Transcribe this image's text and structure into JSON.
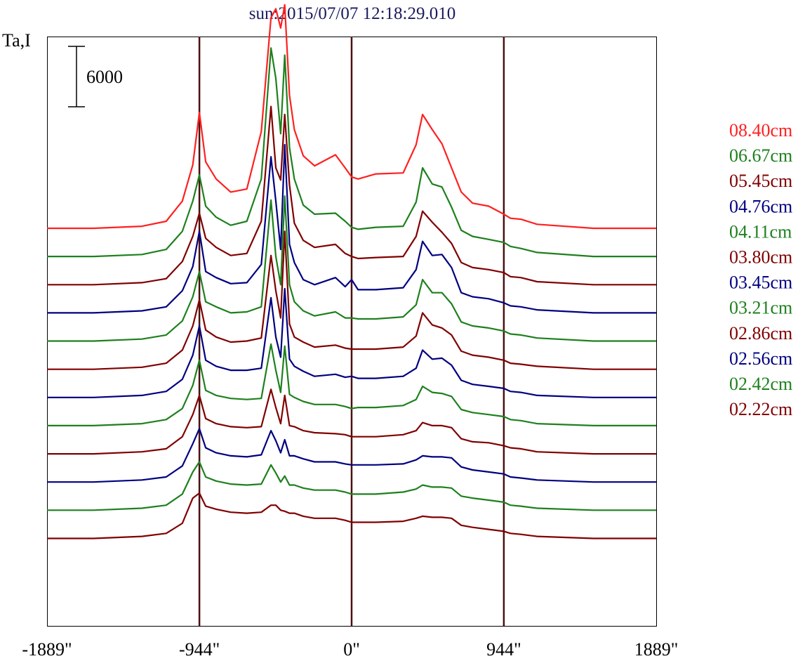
{
  "chart_data": {
    "type": "line",
    "title": "sun:2015/07/07 12:18:29.010",
    "ylabel": "Ta,I",
    "scale_bar_label": "6000",
    "scale_bar_value": 6000,
    "x_tick_labels": [
      "-1889\"",
      "-944\"",
      "0\"",
      "944\"",
      "1889\""
    ],
    "x_ticks": [
      -1889,
      -944,
      0,
      944,
      1889
    ],
    "xlim": [
      -1889,
      1889
    ],
    "vertical_lines": [
      -944,
      0,
      944
    ],
    "grid": false,
    "legend_position": "right",
    "colors": {
      "red": "#ff2020",
      "green": "#1e801e",
      "maroon": "#800000",
      "navy": "#000080",
      "title": "#1a1a60",
      "vline": "#4a1010"
    },
    "legend": [
      {
        "label": "08.40cm",
        "color": "#ff2020"
      },
      {
        "label": "06.67cm",
        "color": "#1e801e"
      },
      {
        "label": "05.45cm",
        "color": "#800000"
      },
      {
        "label": "04.76cm",
        "color": "#000080"
      },
      {
        "label": "04.11cm",
        "color": "#1e801e"
      },
      {
        "label": "03.80cm",
        "color": "#800000"
      },
      {
        "label": "03.45cm",
        "color": "#000080"
      },
      {
        "label": "03.21cm",
        "color": "#1e801e"
      },
      {
        "label": "02.86cm",
        "color": "#800000"
      },
      {
        "label": "02.56cm",
        "color": "#000080"
      },
      {
        "label": "02.42cm",
        "color": "#1e801e"
      },
      {
        "label": "02.22cm",
        "color": "#800000"
      }
    ],
    "x": [
      -1889,
      -1600,
      -1300,
      -1150,
      -1050,
      -985,
      -944,
      -905,
      -840,
      -750,
      -650,
      -560,
      -500,
      -470,
      -440,
      -415,
      -385,
      -355,
      -300,
      -230,
      -100,
      -40,
      0,
      40,
      150,
      320,
      400,
      440,
      500,
      560,
      620,
      680,
      750,
      850,
      944,
      985,
      1050,
      1150,
      1500,
      1889
    ],
    "series": [
      {
        "color": "#ff2020",
        "baseline": 0,
        "values": [
          0,
          0,
          200,
          700,
          2700,
          6300,
          11500,
          6600,
          4900,
          3600,
          3900,
          9600,
          20900,
          21800,
          19900,
          22200,
          13200,
          9800,
          7200,
          6200,
          7300,
          6000,
          5100,
          4900,
          5400,
          5500,
          8300,
          11300,
          9800,
          8400,
          6000,
          3600,
          2500,
          2200,
          1400,
          1000,
          900,
          400,
          0,
          0
        ]
      },
      {
        "color": "#1e801e",
        "baseline": -2800,
        "values": [
          0,
          0,
          200,
          700,
          2500,
          5500,
          8100,
          5000,
          3900,
          3100,
          3500,
          7700,
          20700,
          17700,
          12200,
          20000,
          10800,
          7700,
          5100,
          4200,
          4300,
          3500,
          2900,
          2700,
          2900,
          3000,
          5400,
          8800,
          7200,
          6900,
          4900,
          2600,
          2000,
          1700,
          1400,
          1000,
          800,
          400,
          0,
          0
        ]
      },
      {
        "color": "#800000",
        "baseline": -5600,
        "values": [
          0,
          0,
          200,
          600,
          2300,
          4800,
          7100,
          4600,
          3700,
          2900,
          3100,
          6300,
          17700,
          11600,
          10400,
          16900,
          9900,
          6100,
          4400,
          3700,
          4000,
          3100,
          2800,
          2600,
          2700,
          2800,
          4800,
          7300,
          6200,
          5200,
          4100,
          2200,
          1700,
          1500,
          1200,
          800,
          700,
          300,
          0,
          0
        ]
      },
      {
        "color": "#000080",
        "baseline": -8400,
        "values": [
          0,
          0,
          200,
          600,
          2200,
          4600,
          8100,
          4100,
          3500,
          2900,
          3000,
          4800,
          15500,
          11100,
          6300,
          16700,
          6800,
          5000,
          3300,
          2800,
          3500,
          2600,
          3300,
          2300,
          2300,
          2500,
          4300,
          7100,
          5700,
          5800,
          4500,
          2000,
          1600,
          1400,
          1000,
          700,
          600,
          300,
          0,
          0
        ]
      },
      {
        "color": "#1e801e",
        "baseline": -11200,
        "values": [
          0,
          0,
          200,
          600,
          2000,
          4400,
          6900,
          3900,
          3400,
          2800,
          2900,
          3400,
          14000,
          8400,
          5600,
          14400,
          5600,
          3900,
          3000,
          2500,
          2900,
          2300,
          2300,
          2200,
          2200,
          2400,
          3600,
          6100,
          4800,
          4800,
          3700,
          1900,
          1500,
          1300,
          1000,
          700,
          600,
          300,
          0,
          0
        ]
      },
      {
        "color": "#800000",
        "baseline": -14000,
        "values": [
          0,
          0,
          200,
          600,
          1900,
          4300,
          6900,
          3900,
          3200,
          2700,
          2800,
          3100,
          11300,
          7800,
          5100,
          13700,
          4500,
          3200,
          2700,
          2200,
          2400,
          2100,
          2000,
          2000,
          2000,
          2200,
          3300,
          5600,
          4400,
          4100,
          3400,
          1800,
          1400,
          1200,
          900,
          600,
          500,
          300,
          0,
          0
        ]
      },
      {
        "color": "#000080",
        "baseline": -16800,
        "values": [
          0,
          0,
          200,
          600,
          1800,
          4200,
          7100,
          3700,
          3100,
          2700,
          2700,
          2900,
          9900,
          6000,
          4000,
          10800,
          3800,
          3100,
          2600,
          2100,
          2300,
          2000,
          2100,
          1900,
          1900,
          2100,
          2900,
          4700,
          3800,
          3900,
          3200,
          1700,
          1300,
          1100,
          900,
          600,
          500,
          200,
          0,
          0
        ]
      },
      {
        "color": "#1e801e",
        "baseline": -19600,
        "values": [
          0,
          0,
          200,
          600,
          1700,
          4000,
          6500,
          3500,
          3000,
          2700,
          2600,
          2700,
          8100,
          5500,
          3300,
          7900,
          3100,
          2800,
          2400,
          2100,
          2100,
          1900,
          1700,
          1800,
          1800,
          2000,
          2600,
          3900,
          3300,
          3200,
          2900,
          1600,
          1300,
          1100,
          900,
          600,
          500,
          200,
          0,
          0
        ]
      },
      {
        "color": "#800000",
        "baseline": -22400,
        "values": [
          0,
          0,
          200,
          500,
          1700,
          3900,
          5800,
          3500,
          3000,
          2700,
          2600,
          2700,
          6400,
          4600,
          3000,
          5800,
          2800,
          2700,
          2300,
          2100,
          2000,
          1900,
          1700,
          1700,
          1700,
          1900,
          2300,
          3100,
          2800,
          2800,
          2600,
          1500,
          1200,
          1100,
          800,
          600,
          500,
          200,
          0,
          0
        ]
      },
      {
        "color": "#000080",
        "baseline": -25200,
        "values": [
          0,
          0,
          200,
          500,
          1600,
          3800,
          5300,
          3400,
          2900,
          2600,
          2500,
          2700,
          5100,
          4100,
          2900,
          4200,
          2600,
          2600,
          2300,
          2000,
          2000,
          1800,
          1700,
          1700,
          1700,
          1800,
          2200,
          2600,
          2500,
          2500,
          2400,
          1500,
          1200,
          1000,
          800,
          500,
          400,
          200,
          0,
          0
        ]
      },
      {
        "color": "#1e801e",
        "baseline": -28000,
        "values": [
          0,
          0,
          200,
          500,
          1600,
          3800,
          4800,
          3300,
          2900,
          2600,
          2500,
          2600,
          4500,
          3700,
          2800,
          3400,
          2500,
          2500,
          2200,
          2000,
          2000,
          1800,
          1600,
          1600,
          1600,
          1800,
          2100,
          2500,
          2300,
          2300,
          2200,
          1400,
          1200,
          1000,
          800,
          500,
          400,
          200,
          0,
          0
        ]
      },
      {
        "color": "#800000",
        "baseline": -30800,
        "values": [
          0,
          0,
          200,
          500,
          1500,
          4000,
          4500,
          3200,
          2900,
          2600,
          2500,
          2600,
          3300,
          3300,
          2800,
          2700,
          2500,
          2500,
          2200,
          2000,
          2000,
          1800,
          1600,
          1600,
          1600,
          1700,
          2000,
          2200,
          2100,
          2100,
          2000,
          1300,
          1100,
          900,
          700,
          500,
          400,
          200,
          0,
          0
        ]
      }
    ]
  }
}
